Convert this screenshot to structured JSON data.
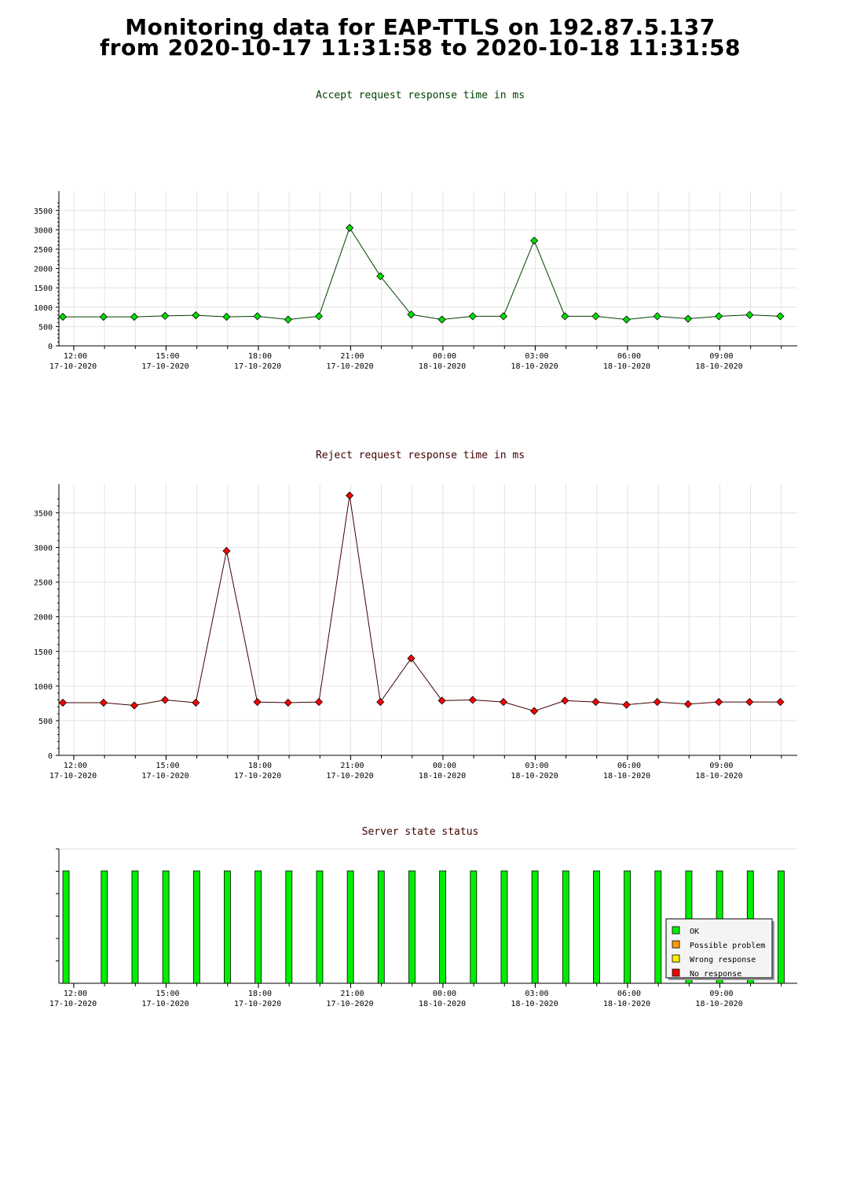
{
  "header": {
    "line1": "Monitoring data for EAP-TTLS on 192.87.5.137",
    "line2": "from 2020-10-17 11:31:58 to 2020-10-18 11:31:58"
  },
  "x_axis_ticks": [
    {
      "time": "12:00",
      "date": "17-10-2020"
    },
    {
      "time": "15:00",
      "date": "17-10-2020"
    },
    {
      "time": "18:00",
      "date": "17-10-2020"
    },
    {
      "time": "21:00",
      "date": "17-10-2020"
    },
    {
      "time": "00:00",
      "date": "18-10-2020"
    },
    {
      "time": "03:00",
      "date": "18-10-2020"
    },
    {
      "time": "06:00",
      "date": "18-10-2020"
    },
    {
      "time": "09:00",
      "date": "18-10-2020"
    }
  ],
  "colors": {
    "accept_line": "#004000",
    "accept_marker": "#00e000",
    "reject_line": "#400000",
    "reject_marker": "#ff0000",
    "ok": "#00ee00",
    "possible_problem": "#ff9900",
    "wrong_response": "#ffee00",
    "no_response": "#ee0000",
    "accept_title": "#004000",
    "reject_title": "#400000"
  },
  "chart_data": [
    {
      "type": "line",
      "title": "Accept request response time in ms",
      "x": [
        "11:58",
        "12:58",
        "13:58",
        "14:58",
        "15:58",
        "16:58",
        "17:58",
        "18:58",
        "19:58",
        "20:58",
        "21:58",
        "22:58",
        "23:58",
        "00:58",
        "01:58",
        "02:58",
        "03:58",
        "04:58",
        "05:58",
        "06:58",
        "07:58",
        "08:58",
        "09:58",
        "10:58"
      ],
      "values": [
        750,
        750,
        750,
        775,
        790,
        750,
        765,
        680,
        765,
        3050,
        1800,
        810,
        680,
        765,
        765,
        2720,
        765,
        765,
        680,
        765,
        700,
        765,
        800,
        765
      ],
      "ylim": [
        0,
        3800
      ],
      "yticks": [
        0,
        500,
        1000,
        1500,
        2000,
        2500,
        3000,
        3500
      ],
      "grid": true
    },
    {
      "type": "line",
      "title": "Reject request response time in ms",
      "x": [
        "11:58",
        "12:58",
        "13:58",
        "14:58",
        "15:58",
        "16:58",
        "17:58",
        "18:58",
        "19:58",
        "20:58",
        "21:58",
        "22:58",
        "23:58",
        "00:58",
        "01:58",
        "02:58",
        "03:58",
        "04:58",
        "05:58",
        "06:58",
        "07:58",
        "08:58",
        "09:58",
        "10:58"
      ],
      "values": [
        760,
        760,
        720,
        800,
        760,
        2950,
        770,
        760,
        770,
        3750,
        770,
        1400,
        790,
        800,
        770,
        640,
        790,
        770,
        730,
        770,
        740,
        770,
        770,
        770
      ],
      "ylim": [
        0,
        3800
      ],
      "yticks": [
        0,
        500,
        1000,
        1500,
        2000,
        2500,
        3000,
        3500
      ],
      "grid": true
    },
    {
      "type": "bar",
      "title": "Server state status",
      "x": [
        "11:58",
        "12:58",
        "13:58",
        "14:58",
        "15:58",
        "16:58",
        "17:58",
        "18:58",
        "19:58",
        "20:58",
        "21:58",
        "22:58",
        "23:58",
        "00:58",
        "01:58",
        "02:58",
        "03:58",
        "04:58",
        "05:58",
        "06:58",
        "07:58",
        "08:58",
        "09:58",
        "10:58"
      ],
      "states": [
        "OK",
        "OK",
        "OK",
        "OK",
        "OK",
        "OK",
        "OK",
        "OK",
        "OK",
        "OK",
        "OK",
        "OK",
        "OK",
        "OK",
        "OK",
        "OK",
        "OK",
        "OK",
        "OK",
        "OK",
        "OK",
        "OK",
        "OK",
        "OK"
      ],
      "legend": [
        "OK",
        "Possible problem",
        "Wrong response",
        "No response"
      ],
      "legend_position": "bottom-right"
    }
  ]
}
